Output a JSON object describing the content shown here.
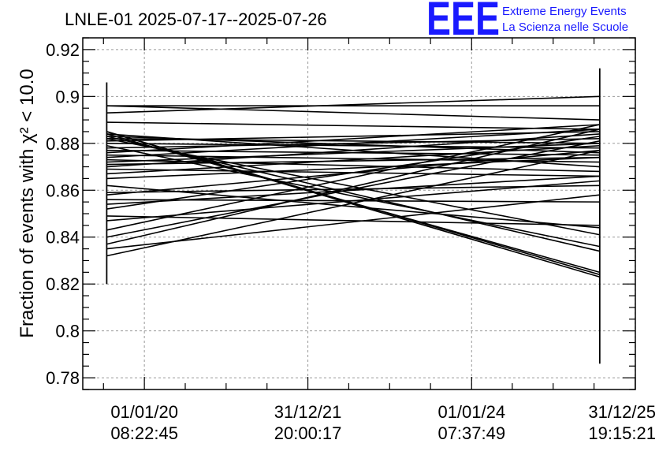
{
  "header": {
    "title": "LNLE-01 2025-07-17--2025-07-26",
    "logo": "EEE",
    "logo_line1": "Extreme Energy Events",
    "logo_line2": "La Scienza nelle Scuole"
  },
  "colors": {
    "logo": "#1a1aff",
    "line": "#000000",
    "grid": "#9a9a9a"
  },
  "chart_data": {
    "type": "line",
    "title": "LNLE-01 2025-07-17--2025-07-26",
    "ylabel": "Fraction of events with χ² < 10.0",
    "xlabel": "",
    "ylim": [
      0.775,
      0.925
    ],
    "yticks": [
      0.78,
      0.8,
      0.82,
      0.84,
      0.86,
      0.88,
      0.9,
      0.92
    ],
    "ytick_labels": [
      "0.78",
      "0.8",
      "0.82",
      "0.84",
      "0.86",
      "0.88",
      "0.9",
      "0.92"
    ],
    "xticks": [
      {
        "date": "01/01/20",
        "time": "08:22:45"
      },
      {
        "date": "31/12/21",
        "time": "20:00:17"
      },
      {
        "date": "01/01/24",
        "time": "07:37:49"
      },
      {
        "date": "31/12/25",
        "time": "19:15:21"
      }
    ],
    "x_range_dates": [
      "2019-04-01",
      "2026-01-01"
    ],
    "x_points": [
      "2019-07-17",
      "2025-07-26"
    ],
    "grid": true,
    "error_bars": [
      {
        "x": "2019-07-17",
        "low": 0.82,
        "high": 0.906
      },
      {
        "x": "2025-07-26",
        "low": 0.786,
        "high": 0.912
      }
    ],
    "series": [
      {
        "values": [
          0.896,
          0.896
        ]
      },
      {
        "values": [
          0.896,
          0.89
        ]
      },
      {
        "values": [
          0.893,
          0.9
        ]
      },
      {
        "values": [
          0.889,
          0.886
        ]
      },
      {
        "values": [
          0.885,
          0.823
        ]
      },
      {
        "values": [
          0.885,
          0.824
        ]
      },
      {
        "values": [
          0.884,
          0.825
        ]
      },
      {
        "values": [
          0.884,
          0.87
        ]
      },
      {
        "values": [
          0.883,
          0.876
        ]
      },
      {
        "values": [
          0.883,
          0.834
        ]
      },
      {
        "values": [
          0.882,
          0.88
        ]
      },
      {
        "values": [
          0.882,
          0.841
        ]
      },
      {
        "values": [
          0.881,
          0.885
        ]
      },
      {
        "values": [
          0.88,
          0.878
        ]
      },
      {
        "values": [
          0.879,
          0.836
        ]
      },
      {
        "values": [
          0.878,
          0.882
        ]
      },
      {
        "values": [
          0.877,
          0.875
        ]
      },
      {
        "values": [
          0.876,
          0.888
        ]
      },
      {
        "values": [
          0.875,
          0.872
        ]
      },
      {
        "values": [
          0.874,
          0.886
        ]
      },
      {
        "values": [
          0.873,
          0.868
        ]
      },
      {
        "values": [
          0.872,
          0.88
        ]
      },
      {
        "values": [
          0.871,
          0.874
        ]
      },
      {
        "values": [
          0.87,
          0.884
        ]
      },
      {
        "values": [
          0.869,
          0.866
        ]
      },
      {
        "values": [
          0.867,
          0.879
        ]
      },
      {
        "values": [
          0.865,
          0.874
        ]
      },
      {
        "values": [
          0.862,
          0.844
        ]
      },
      {
        "values": [
          0.859,
          0.862
        ]
      },
      {
        "values": [
          0.858,
          0.877
        ]
      },
      {
        "values": [
          0.856,
          0.855
        ]
      },
      {
        "values": [
          0.854,
          0.866
        ]
      },
      {
        "values": [
          0.852,
          0.883
        ]
      },
      {
        "values": [
          0.849,
          0.845
        ]
      },
      {
        "values": [
          0.847,
          0.864
        ]
      },
      {
        "values": [
          0.843,
          0.888
        ]
      },
      {
        "values": [
          0.84,
          0.881
        ]
      },
      {
        "values": [
          0.837,
          0.886
        ]
      },
      {
        "values": [
          0.835,
          0.858
        ]
      },
      {
        "values": [
          0.832,
          0.877
        ]
      }
    ]
  }
}
